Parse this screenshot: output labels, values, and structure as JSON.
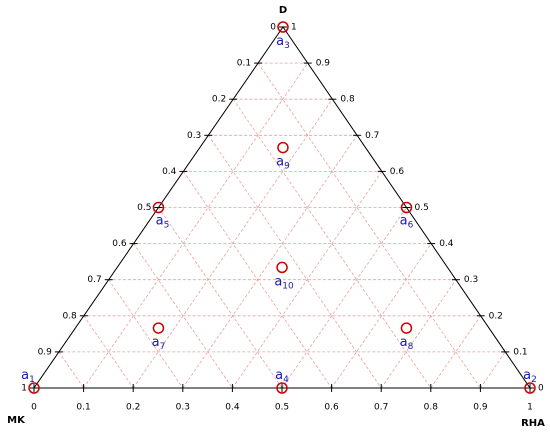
{
  "chart_data": {
    "type": "ternary",
    "corners": {
      "top": "D",
      "left": "MK",
      "right": "RHA"
    },
    "axes": {
      "bottom": {
        "component": "rha",
        "ticks": [
          0,
          0.1,
          0.2,
          0.3,
          0.4,
          0.5,
          0.6,
          0.7,
          0.8,
          0.9,
          1
        ]
      },
      "left": {
        "component": "mk",
        "ticks": [
          0,
          0.1,
          0.2,
          0.3,
          0.4,
          0.5,
          0.6,
          0.7,
          0.8,
          0.9,
          1
        ]
      },
      "right": {
        "component": "d",
        "ticks": [
          0,
          0.1,
          0.2,
          0.3,
          0.4,
          0.5,
          0.6,
          0.7,
          0.8,
          0.9,
          1
        ]
      }
    },
    "grid": true,
    "grid_color": "#e8a0a0",
    "marker_color": "#cc0000",
    "label_color": "#1a1aaa",
    "points": [
      {
        "name": "a",
        "sub": "1",
        "mk": 1,
        "rha": 0,
        "d": 0
      },
      {
        "name": "a",
        "sub": "2",
        "mk": 0,
        "rha": 1,
        "d": 0
      },
      {
        "name": "a",
        "sub": "3",
        "mk": 0,
        "rha": 0,
        "d": 1
      },
      {
        "name": "a",
        "sub": "4",
        "mk": 0.5,
        "rha": 0.5,
        "d": 0
      },
      {
        "name": "a",
        "sub": "5",
        "mk": 0.5,
        "rha": 0,
        "d": 0.5
      },
      {
        "name": "a",
        "sub": "6",
        "mk": 0,
        "rha": 0.5,
        "d": 0.5
      },
      {
        "name": "a",
        "sub": "7",
        "mk": 0.667,
        "rha": 0.167,
        "d": 0.167
      },
      {
        "name": "a",
        "sub": "8",
        "mk": 0.167,
        "rha": 0.667,
        "d": 0.167
      },
      {
        "name": "a",
        "sub": "9",
        "mk": 0.167,
        "rha": 0.167,
        "d": 0.667
      },
      {
        "name": "a",
        "sub": "10",
        "mk": 0.333,
        "rha": 0.333,
        "d": 0.333
      }
    ]
  }
}
